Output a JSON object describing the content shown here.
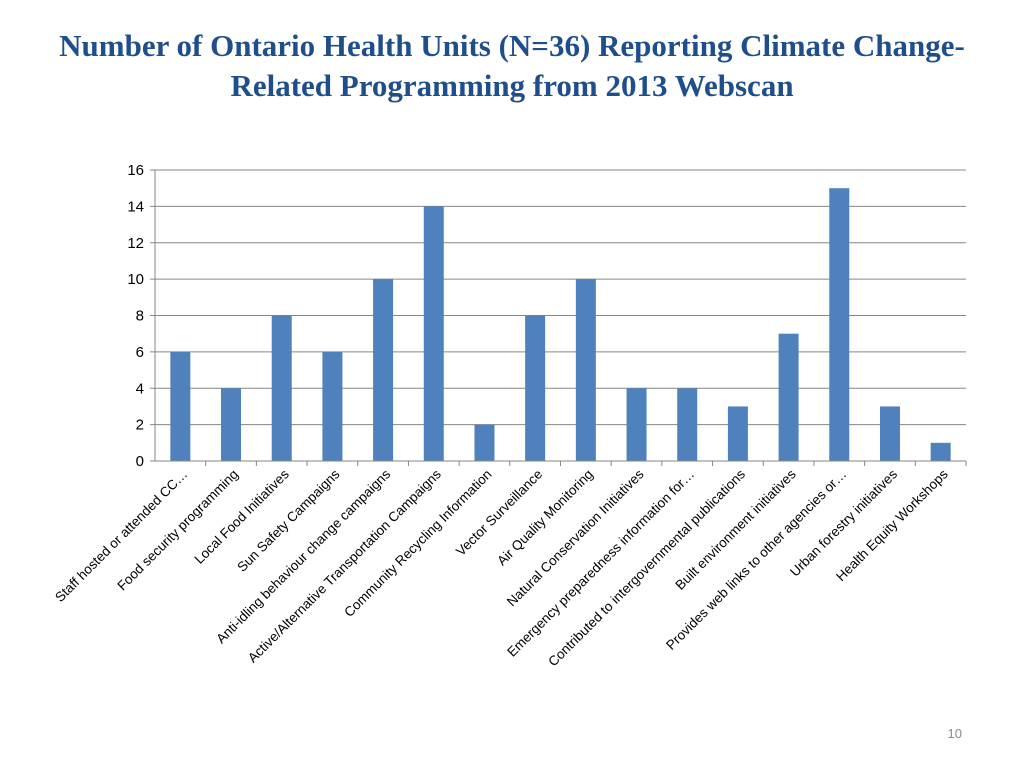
{
  "slide": {
    "number": "10"
  },
  "chart_data": {
    "type": "bar",
    "title": "Number of Ontario Health Units (N=36) Reporting Climate Change-Related Programming from 2013 Webscan",
    "xlabel": "",
    "ylabel": "",
    "ylim": [
      0,
      16
    ],
    "yticks": [
      "0",
      "2",
      "4",
      "6",
      "8",
      "10",
      "12",
      "14",
      "16"
    ],
    "grid": true,
    "legend": "none",
    "bar_color": "#4F81BD",
    "categories": [
      "Staff hosted or attended CC…",
      "Food security programming",
      "Local Food Initiatives",
      "Sun Safety Campaigns",
      "Anti-idling behaviour change campaigns",
      "Active/Alternative Transportation Campaigns",
      "Community Recycling Information",
      "Vector Surveillance",
      "Air Quality Monitoring",
      "Natural Conservation Initiatives",
      "Emergency preparedness information for…",
      "Contributed to intergovernmental publications",
      "Built environment initiatives",
      "Provides web links to other agencies or…",
      "Urban forestry initiatives",
      "Health Equity Workshops"
    ],
    "values": [
      6,
      4,
      8,
      6,
      10,
      14,
      2,
      8,
      10,
      4,
      4,
      3,
      7,
      15,
      3,
      1
    ]
  }
}
